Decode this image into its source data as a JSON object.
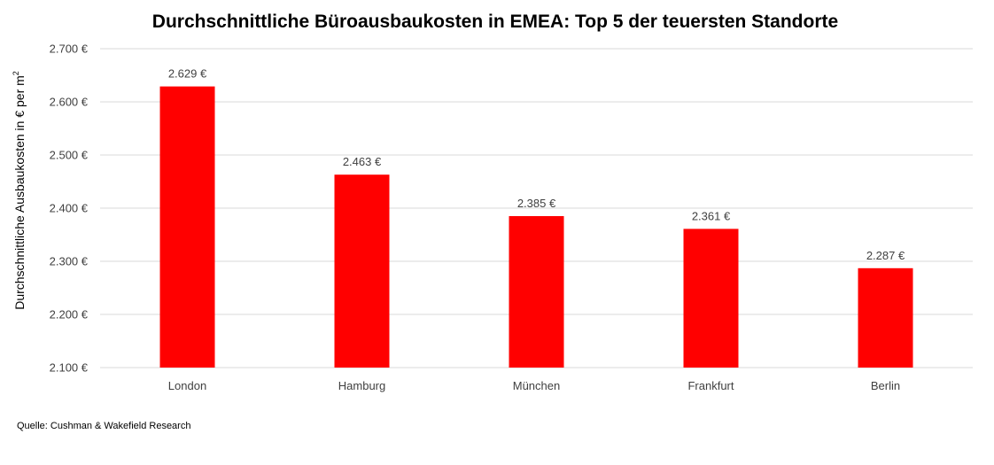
{
  "chart_data": {
    "type": "bar",
    "title": "Durchschnittliche Büroausbaukosten in EMEA: Top 5 der teuersten Standorte",
    "ylabel": "Durchschnittliche Ausbaukosten in € per m",
    "ylabel_superscript": "2",
    "xlabel": "",
    "categories": [
      "London",
      "Hamburg",
      "München",
      "Frankfurt",
      "Berlin"
    ],
    "values": [
      2629,
      2463,
      2385,
      2361,
      2287
    ],
    "data_labels": [
      "2.629 €",
      "2.463 €",
      "2.385 €",
      "2.361 €",
      "2.287 €"
    ],
    "ylim": [
      2100,
      2700
    ],
    "yticks": [
      2100,
      2200,
      2300,
      2400,
      2500,
      2600,
      2700
    ],
    "ytick_labels": [
      "2.100 €",
      "2.200 €",
      "2.300 €",
      "2.400 €",
      "2.500 €",
      "2.600 €",
      "2.700 €"
    ],
    "grid": true,
    "legend": "none",
    "bar_color": "#ff0000"
  },
  "source_note": "Quelle: Cushman & Wakefield Research"
}
